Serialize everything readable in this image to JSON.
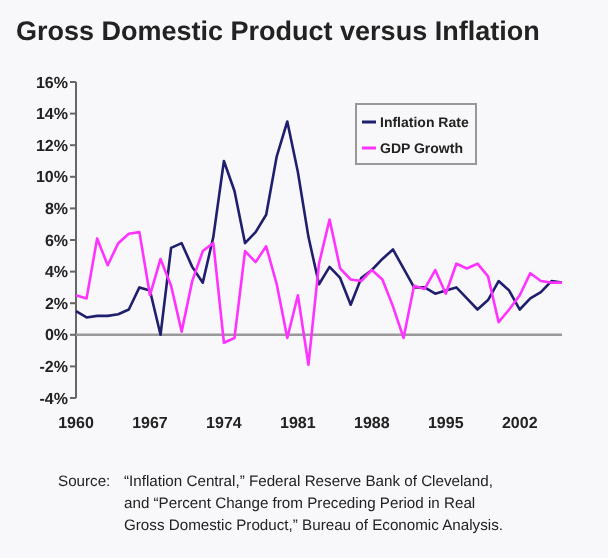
{
  "chart_data": {
    "type": "line",
    "title": "Gross Domestic Product versus Inflation",
    "x": [
      1960,
      1961,
      1962,
      1963,
      1964,
      1965,
      1966,
      1967,
      1968,
      1969,
      1970,
      1971,
      1972,
      1973,
      1974,
      1975,
      1976,
      1977,
      1978,
      1979,
      1980,
      1981,
      1982,
      1983,
      1984,
      1985,
      1986,
      1987,
      1988,
      1989,
      1990,
      1991,
      1992,
      1993,
      1994,
      1995,
      1996,
      1997,
      1998,
      1999,
      2000,
      2001,
      2002,
      2003,
      2004,
      2005,
      2006
    ],
    "series": [
      {
        "name": "Inflation Rate",
        "color": "#1f1f6e",
        "values": [
          1.5,
          1.1,
          1.2,
          1.2,
          1.3,
          1.6,
          3.0,
          2.8,
          0.0,
          5.5,
          5.8,
          4.3,
          3.3,
          6.2,
          11.0,
          9.1,
          5.8,
          6.5,
          7.6,
          11.3,
          13.5,
          10.3,
          6.2,
          3.2,
          4.3,
          3.6,
          1.9,
          3.6,
          4.1,
          4.8,
          5.4,
          4.2,
          3.0,
          3.0,
          2.6,
          2.8,
          3.0,
          2.3,
          1.6,
          2.2,
          3.4,
          2.8,
          1.6,
          2.3,
          2.7,
          3.4,
          3.3
        ]
      },
      {
        "name": "GDP Growth",
        "color": "#ff33ff",
        "values": [
          2.5,
          2.3,
          6.1,
          4.4,
          5.8,
          6.4,
          6.5,
          2.5,
          4.8,
          3.1,
          0.2,
          3.4,
          5.3,
          5.8,
          -0.5,
          -0.2,
          5.3,
          4.6,
          5.6,
          3.2,
          -0.2,
          2.5,
          -1.9,
          4.5,
          7.3,
          4.2,
          3.5,
          3.4,
          4.1,
          3.5,
          1.8,
          -0.2,
          3.1,
          2.9,
          4.1,
          2.6,
          4.5,
          4.2,
          4.5,
          3.7,
          0.8,
          1.6,
          2.5,
          3.9,
          3.4,
          3.3,
          3.3
        ]
      }
    ],
    "xlim": [
      1960,
      2006
    ],
    "xticks": [
      1960,
      1967,
      1974,
      1981,
      1988,
      1995,
      2002
    ],
    "ylim": [
      -4,
      16
    ],
    "yticks": [
      {
        "value": -4,
        "label": "-4%"
      },
      {
        "value": -2,
        "label": "-2%"
      },
      {
        "value": 0,
        "label": "0%"
      },
      {
        "value": 2,
        "label": "2%"
      },
      {
        "value": 4,
        "label": "4%"
      },
      {
        "value": 6,
        "label": "6%"
      },
      {
        "value": 8,
        "label": "8%"
      },
      {
        "value": 10,
        "label": "10%"
      },
      {
        "value": 12,
        "label": "12%"
      },
      {
        "value": 14,
        "label": "14%"
      },
      {
        "value": 16,
        "label": "16%"
      }
    ],
    "ref_lines": [
      {
        "axis": "y",
        "value": 0,
        "color": "#999999"
      }
    ],
    "legend": "top right",
    "marker": "none",
    "line_style": "solid",
    "annotations": [
      "Source:",
      "“Inflation Central,” Federal Reserve Bank of Cleveland,",
      "and “Percent Change from Preceding Period in Real",
      "Gross Domestic Product,” Bureau of Economic Analysis."
    ]
  }
}
